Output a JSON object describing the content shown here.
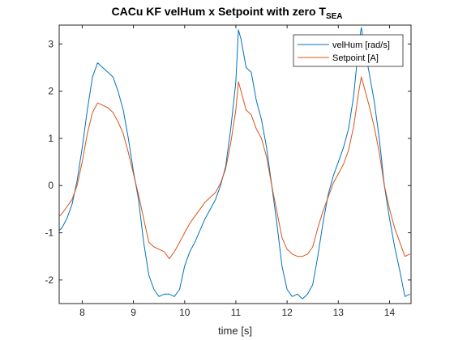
{
  "chart_data": {
    "type": "line",
    "title": "CACu KF velHum x Setpoint with zero T",
    "title_subscript": "SEA",
    "xlabel": "time [s]",
    "ylabel": "",
    "xlim": [
      7.55,
      14.42
    ],
    "ylim": [
      -2.5,
      3.4
    ],
    "xticks": [
      8,
      9,
      10,
      11,
      12,
      13,
      14
    ],
    "yticks": [
      -2,
      -1,
      0,
      1,
      2,
      3
    ],
    "grid": false,
    "legend_position": "top-right",
    "series": [
      {
        "name": "velHum [rad/s]",
        "color": "#0072BD",
        "x": [
          7.55,
          7.6,
          7.7,
          7.8,
          7.9,
          8.0,
          8.1,
          8.2,
          8.3,
          8.4,
          8.5,
          8.6,
          8.7,
          8.8,
          8.9,
          9.0,
          9.1,
          9.2,
          9.3,
          9.4,
          9.5,
          9.6,
          9.7,
          9.8,
          9.9,
          10.0,
          10.1,
          10.2,
          10.3,
          10.4,
          10.5,
          10.6,
          10.7,
          10.8,
          10.9,
          11.0,
          11.05,
          11.1,
          11.2,
          11.3,
          11.4,
          11.5,
          11.6,
          11.7,
          11.8,
          11.9,
          12.0,
          12.1,
          12.2,
          12.3,
          12.4,
          12.5,
          12.6,
          12.7,
          12.8,
          12.9,
          13.0,
          13.1,
          13.2,
          13.3,
          13.4,
          13.45,
          13.5,
          13.6,
          13.7,
          13.8,
          13.9,
          14.0,
          14.1,
          14.2,
          14.3,
          14.4
        ],
        "y": [
          -0.95,
          -0.9,
          -0.7,
          -0.4,
          0.1,
          0.8,
          1.6,
          2.3,
          2.6,
          2.5,
          2.4,
          2.3,
          2.0,
          1.6,
          1.0,
          0.3,
          -0.3,
          -1.2,
          -1.9,
          -2.2,
          -2.35,
          -2.3,
          -2.3,
          -2.35,
          -2.2,
          -1.7,
          -1.4,
          -1.2,
          -0.95,
          -0.7,
          -0.5,
          -0.3,
          0.0,
          0.4,
          1.2,
          2.2,
          3.3,
          3.1,
          2.5,
          2.4,
          1.8,
          1.4,
          0.8,
          0.0,
          -0.8,
          -1.7,
          -2.2,
          -2.35,
          -2.3,
          -2.4,
          -2.3,
          -2.1,
          -1.5,
          -0.8,
          -0.2,
          0.2,
          0.5,
          0.8,
          1.2,
          1.9,
          3.0,
          3.35,
          3.0,
          2.4,
          1.8,
          1.0,
          0.0,
          -0.7,
          -1.3,
          -1.8,
          -2.35,
          -2.3
        ]
      },
      {
        "name": "Setpoint [A]",
        "color": "#D95319",
        "x": [
          7.55,
          7.6,
          7.7,
          7.8,
          7.9,
          8.0,
          8.1,
          8.2,
          8.3,
          8.4,
          8.5,
          8.6,
          8.7,
          8.8,
          8.9,
          9.0,
          9.1,
          9.2,
          9.3,
          9.4,
          9.5,
          9.6,
          9.7,
          9.8,
          9.9,
          10.0,
          10.1,
          10.2,
          10.3,
          10.4,
          10.5,
          10.6,
          10.7,
          10.8,
          10.9,
          11.0,
          11.05,
          11.1,
          11.2,
          11.3,
          11.4,
          11.5,
          11.6,
          11.7,
          11.8,
          11.9,
          12.0,
          12.1,
          12.2,
          12.3,
          12.4,
          12.5,
          12.6,
          12.7,
          12.8,
          12.9,
          13.0,
          13.1,
          13.2,
          13.3,
          13.4,
          13.45,
          13.5,
          13.6,
          13.7,
          13.8,
          13.9,
          14.0,
          14.1,
          14.2,
          14.3,
          14.4
        ],
        "y": [
          -0.65,
          -0.6,
          -0.45,
          -0.3,
          0.0,
          0.5,
          1.1,
          1.55,
          1.75,
          1.7,
          1.65,
          1.55,
          1.35,
          1.1,
          0.7,
          0.25,
          -0.2,
          -0.7,
          -1.2,
          -1.3,
          -1.35,
          -1.4,
          -1.55,
          -1.4,
          -1.2,
          -1.0,
          -0.8,
          -0.65,
          -0.5,
          -0.35,
          -0.25,
          -0.15,
          0.05,
          0.35,
          0.9,
          1.6,
          2.2,
          2.0,
          1.6,
          1.5,
          1.2,
          1.0,
          0.6,
          0.0,
          -0.55,
          -1.1,
          -1.35,
          -1.45,
          -1.5,
          -1.5,
          -1.45,
          -1.3,
          -0.9,
          -0.55,
          -0.25,
          0.05,
          0.25,
          0.45,
          0.75,
          1.25,
          2.0,
          2.3,
          2.1,
          1.7,
          1.25,
          0.7,
          0.0,
          -0.5,
          -0.9,
          -1.2,
          -1.5,
          -1.45
        ]
      }
    ]
  }
}
